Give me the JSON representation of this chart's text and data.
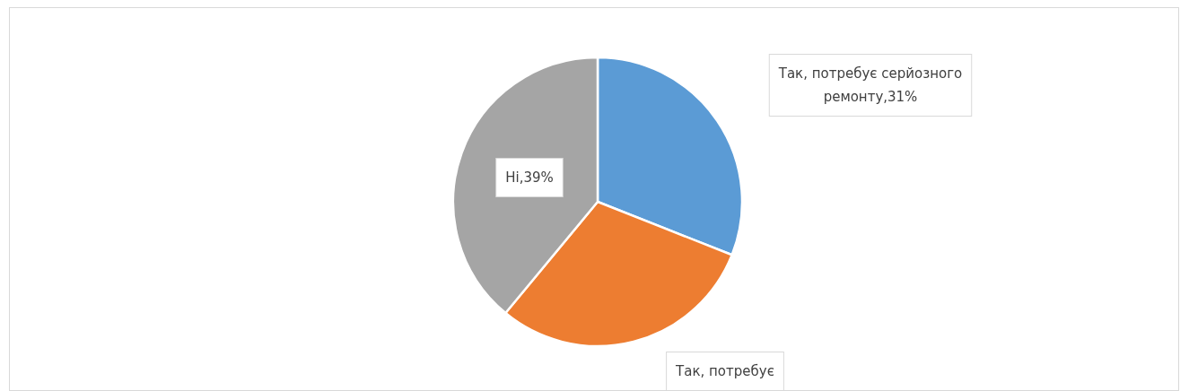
{
  "chart_data": {
    "type": "pie",
    "categories": [
      "Так, потребує серйозного ремонту",
      "Так, потребує",
      "Ні"
    ],
    "values": [
      31,
      30,
      39
    ],
    "colors": [
      "#5b9bd5",
      "#ed7d31",
      "#a5a5a5"
    ],
    "value_labels": [
      ",31%",
      null,
      ",39%"
    ],
    "legend": false
  }
}
